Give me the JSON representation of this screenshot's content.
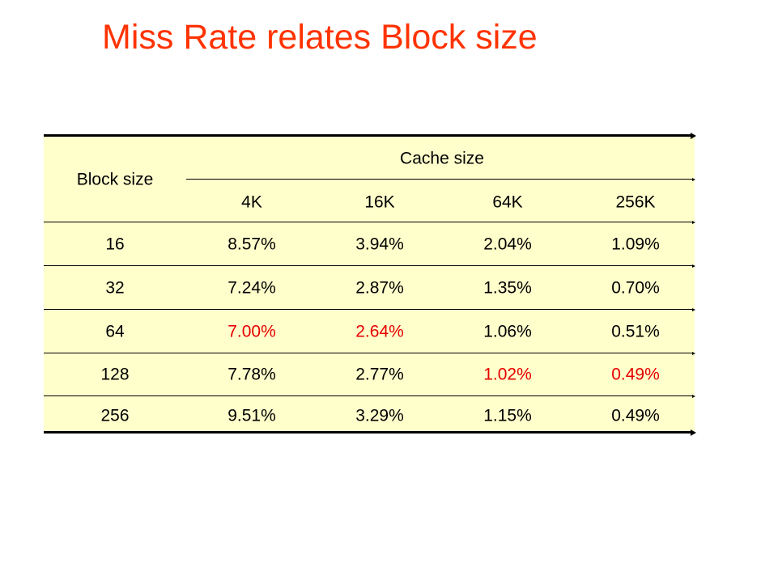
{
  "slide": {
    "title": "Miss Rate relates Block size"
  },
  "table": {
    "row_header_label": "Block size",
    "column_group_label": "Cache size",
    "columns": [
      "4K",
      "16K",
      "64K",
      "256K"
    ],
    "rows": [
      {
        "block_size": "16",
        "values": [
          "8.57%",
          "3.94%",
          "2.04%",
          "1.09%"
        ],
        "highlight": [
          false,
          false,
          false,
          false
        ]
      },
      {
        "block_size": "32",
        "values": [
          "7.24%",
          "2.87%",
          "1.35%",
          "0.70%"
        ],
        "highlight": [
          false,
          false,
          false,
          false
        ]
      },
      {
        "block_size": "64",
        "values": [
          "7.00%",
          "2.64%",
          "1.06%",
          "0.51%"
        ],
        "highlight": [
          true,
          true,
          false,
          false
        ]
      },
      {
        "block_size": "128",
        "values": [
          "7.78%",
          "2.77%",
          "1.02%",
          "0.49%"
        ],
        "highlight": [
          false,
          false,
          true,
          true
        ]
      },
      {
        "block_size": "256",
        "values": [
          "9.51%",
          "3.29%",
          "1.15%",
          "0.49%"
        ],
        "highlight": [
          false,
          false,
          false,
          false
        ]
      }
    ]
  },
  "colors": {
    "title": "#ff3300",
    "highlight": "#e60000",
    "table_background": "#ffffcc"
  }
}
